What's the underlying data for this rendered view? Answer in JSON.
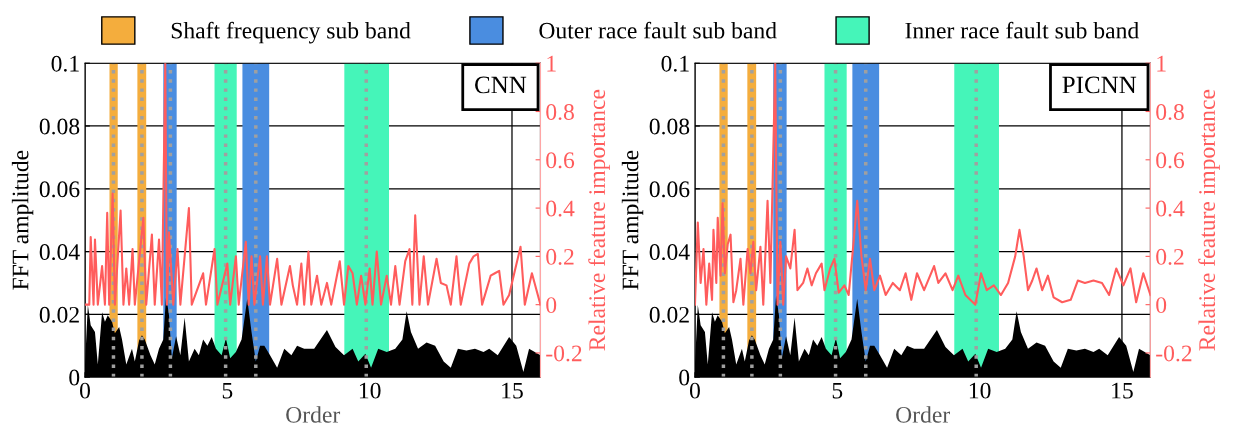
{
  "chart_data": [
    {
      "type": "line",
      "annotations": [
        "CNN"
      ],
      "xlabel": "Order",
      "ylabel": "FFT amplitude",
      "y2label": "Relative feature importance",
      "xlim": [
        0,
        16
      ],
      "xticks": [
        0,
        5,
        10,
        15
      ],
      "ylim": [
        0,
        0.1
      ],
      "yticks": [
        0,
        0.02,
        0.04,
        0.06,
        0.08,
        0.1
      ],
      "y2lim": [
        -0.3,
        1
      ],
      "y2ticks": [
        -0.2,
        0,
        0.2,
        0.4,
        0.6,
        0.8,
        1
      ],
      "grid": true,
      "legend": "top",
      "series": [
        {
          "type": "area",
          "axis": "y",
          "color": "#000000",
          "x": [
            0,
            0.1,
            0.2,
            0.35,
            0.45,
            0.6,
            0.7,
            0.8,
            0.95,
            1.05,
            1.2,
            1.3,
            1.45,
            1.65,
            1.75,
            1.9,
            2.0,
            2.1,
            2.3,
            2.45,
            2.6,
            2.75,
            2.85,
            2.95,
            3.05,
            3.2,
            3.35,
            3.5,
            3.65,
            3.85,
            4.0,
            4.15,
            4.3,
            4.45,
            4.6,
            4.8,
            4.95,
            5.1,
            5.3,
            5.5,
            5.7,
            5.85,
            6.0,
            6.15,
            6.3,
            6.5,
            6.75,
            7.0,
            7.25,
            7.45,
            7.7,
            8.05,
            8.5,
            8.8,
            9.1,
            9.4,
            9.6,
            9.85,
            10.05,
            10.3,
            10.6,
            10.9,
            11.15,
            11.3,
            11.45,
            11.7,
            12.0,
            12.3,
            12.6,
            12.85,
            13.1,
            13.4,
            13.7,
            14.0,
            14.2,
            14.5,
            14.9,
            15.15,
            15.4,
            15.6,
            15.8,
            16
          ],
          "values": [
            0.004,
            0.023,
            0.0165,
            0.0144,
            0.004,
            0.0207,
            0.0176,
            0.0197,
            0.0176,
            0.014,
            0.016,
            0.012,
            0.004,
            0.009,
            0.005,
            0.0117,
            0.0133,
            0.012,
            0.007,
            0.004,
            0.009,
            0.012,
            0.026,
            0.0197,
            0.006,
            0.013,
            0.007,
            0.019,
            0.005,
            0.009,
            0.007,
            0.012,
            0.01,
            0.0128,
            0.009,
            0.007,
            0.0124,
            0.006,
            0.008,
            0.012,
            0.025,
            0.0144,
            0.005,
            0.01,
            0.01,
            0.007,
            0.003,
            0.009,
            0.007,
            0.01,
            0.009,
            0.009,
            0.015,
            0.0096,
            0.007,
            0.009,
            0.005,
            0.0074,
            0.003,
            0.009,
            0.008,
            0.009,
            0.012,
            0.021,
            0.0144,
            0.009,
            0.011,
            0.01,
            0.005,
            0.003,
            0.009,
            0.0085,
            0.009,
            0.008,
            0.009,
            0.007,
            0.0128,
            0.01,
            0.0016,
            0.009,
            0.008,
            0.007
          ]
        },
        {
          "axis": "y2",
          "color": "#ff5c5c",
          "x": [
            0,
            0.15,
            0.2,
            0.3,
            0.35,
            0.45,
            0.6,
            0.7,
            0.78,
            0.85,
            0.97,
            1.05,
            1.25,
            1.35,
            1.45,
            1.55,
            1.67,
            1.75,
            2.05,
            2.15,
            2.35,
            2.45,
            2.6,
            2.7,
            2.82,
            2.88,
            2.95,
            3.1,
            3.25,
            3.35,
            3.65,
            3.75,
            4.15,
            4.25,
            4.55,
            4.65,
            5.0,
            5.1,
            5.3,
            5.4,
            5.65,
            5.75,
            5.85,
            5.95,
            6.15,
            6.25,
            6.39,
            6.5,
            6.75,
            6.9,
            7.2,
            7.3,
            7.45,
            7.6,
            7.7,
            7.85,
            7.95,
            8.15,
            8.3,
            8.5,
            8.65,
            8.95,
            9.1,
            9.25,
            9.4,
            9.55,
            9.7,
            9.85,
            10.0,
            10.1,
            10.25,
            10.4,
            10.6,
            10.75,
            10.9,
            11.05,
            11.25,
            11.4,
            11.5,
            11.6,
            11.75,
            11.9,
            12.05,
            12.35,
            12.5,
            12.7,
            12.85,
            13.05,
            13.2,
            13.5,
            13.65,
            13.8,
            13.95,
            14.25,
            14.4,
            14.55,
            14.7,
            14.9,
            15.1,
            15.3,
            15.45,
            15.7,
            16
          ],
          "values": [
            0,
            0,
            0.28,
            0,
            0.27,
            0,
            0.16,
            0,
            0.38,
            0,
            0.46,
            0,
            0.39,
            0,
            0.15,
            0,
            0.23,
            0,
            0.36,
            0,
            0.29,
            0,
            0.27,
            0,
            1.0,
            0,
            0.3,
            0,
            0.23,
            0,
            0.4,
            0,
            0.13,
            0,
            0.23,
            0,
            0.17,
            0,
            0.2,
            0,
            0.26,
            0,
            0.2,
            0,
            0.2,
            0,
            0.2,
            0,
            0.19,
            0,
            0.16,
            0.08,
            0,
            0.17,
            0,
            0.22,
            0,
            0.12,
            0,
            0.09,
            0,
            0.18,
            0,
            0.16,
            0.13,
            0,
            0.12,
            0,
            0.15,
            0,
            0.22,
            0,
            0.12,
            0,
            0.16,
            0,
            0.18,
            0.23,
            0,
            0.37,
            0,
            0.2,
            0,
            0.19,
            0.09,
            0.08,
            0,
            0.2,
            0,
            0.17,
            0.2,
            0.21,
            0,
            0.12,
            0.13,
            0.14,
            0,
            0.04,
            0.14,
            0.24,
            0,
            0.13,
            0
          ]
        }
      ],
      "bands": [
        {
          "axis": "x",
          "from": 0.86,
          "to": 1.15,
          "label": "Shaft frequency sub band",
          "color": "#f4ad3d"
        },
        {
          "axis": "x",
          "from": 1.84,
          "to": 2.15,
          "color": "#f4ad3d"
        },
        {
          "axis": "x",
          "from": 2.75,
          "to": 3.22,
          "label": "Outer race fault sub band",
          "color": "#4a8de0"
        },
        {
          "axis": "x",
          "from": 4.55,
          "to": 5.33,
          "label": "Inner race fault sub band",
          "color": "#45f5b9"
        },
        {
          "axis": "x",
          "from": 5.53,
          "to": 6.47,
          "color": "#4a8de0"
        },
        {
          "axis": "x",
          "from": 9.11,
          "to": 10.68,
          "color": "#45f5b9"
        }
      ],
      "ref_lines": [
        {
          "axis": "x",
          "value": 1,
          "color": "#a0a0a0",
          "line_style": "dotted"
        },
        {
          "axis": "x",
          "value": 2,
          "color": "#a0a0a0",
          "line_style": "dotted"
        },
        {
          "axis": "x",
          "value": 3,
          "color": "#a0a0a0",
          "line_style": "dotted"
        },
        {
          "axis": "x",
          "value": 4.94,
          "color": "#a0a0a0",
          "line_style": "dotted"
        },
        {
          "axis": "x",
          "value": 6,
          "color": "#a0a0a0",
          "line_style": "dotted"
        },
        {
          "axis": "x",
          "value": 9.88,
          "color": "#a0a0a0",
          "line_style": "dotted"
        }
      ]
    },
    {
      "type": "line",
      "annotations": [
        "PICNN"
      ],
      "xlabel": "Order",
      "ylabel": "FFT amplitude",
      "y2label": "Relative feature importance",
      "xlim": [
        0,
        16
      ],
      "xticks": [
        0,
        5,
        10,
        15
      ],
      "ylim": [
        0,
        0.1
      ],
      "yticks": [
        0,
        0.02,
        0.04,
        0.06,
        0.08,
        0.1
      ],
      "y2lim": [
        -0.3,
        1
      ],
      "y2ticks": [
        -0.2,
        0,
        0.2,
        0.4,
        0.6,
        0.8,
        1
      ],
      "grid": true,
      "series": [
        {
          "type": "area",
          "axis": "y",
          "color": "#000000",
          "x": [
            0,
            0.1,
            0.2,
            0.35,
            0.45,
            0.6,
            0.7,
            0.8,
            0.95,
            1.05,
            1.2,
            1.3,
            1.45,
            1.65,
            1.75,
            1.9,
            2.0,
            2.1,
            2.3,
            2.45,
            2.6,
            2.75,
            2.85,
            2.95,
            3.05,
            3.2,
            3.35,
            3.5,
            3.65,
            3.85,
            4.0,
            4.15,
            4.3,
            4.45,
            4.6,
            4.8,
            4.95,
            5.1,
            5.3,
            5.5,
            5.7,
            5.85,
            6.0,
            6.15,
            6.3,
            6.5,
            6.75,
            7.0,
            7.25,
            7.45,
            7.7,
            8.05,
            8.5,
            8.8,
            9.1,
            9.4,
            9.6,
            9.85,
            10.05,
            10.3,
            10.6,
            10.9,
            11.15,
            11.3,
            11.45,
            11.7,
            12.0,
            12.3,
            12.6,
            12.85,
            13.1,
            13.4,
            13.7,
            14.0,
            14.2,
            14.5,
            14.9,
            15.15,
            15.4,
            15.6,
            15.8,
            16
          ],
          "values": [
            0.004,
            0.023,
            0.0165,
            0.0144,
            0.004,
            0.0207,
            0.0176,
            0.0197,
            0.0176,
            0.014,
            0.016,
            0.012,
            0.004,
            0.009,
            0.005,
            0.0117,
            0.0133,
            0.012,
            0.007,
            0.004,
            0.009,
            0.012,
            0.026,
            0.0197,
            0.006,
            0.013,
            0.007,
            0.019,
            0.005,
            0.009,
            0.007,
            0.012,
            0.01,
            0.0128,
            0.009,
            0.007,
            0.0124,
            0.006,
            0.008,
            0.012,
            0.025,
            0.0144,
            0.005,
            0.01,
            0.01,
            0.007,
            0.003,
            0.009,
            0.007,
            0.01,
            0.009,
            0.009,
            0.015,
            0.0096,
            0.007,
            0.009,
            0.005,
            0.0074,
            0.003,
            0.009,
            0.008,
            0.009,
            0.012,
            0.021,
            0.0144,
            0.009,
            0.011,
            0.01,
            0.005,
            0.003,
            0.009,
            0.0085,
            0.009,
            0.008,
            0.009,
            0.007,
            0.0128,
            0.01,
            0.0016,
            0.009,
            0.008,
            0.007
          ]
        },
        {
          "axis": "y2",
          "color": "#ff5c5c",
          "x": [
            0,
            0.1,
            0.2,
            0.3,
            0.4,
            0.5,
            0.6,
            0.65,
            0.75,
            0.8,
            0.9,
            0.97,
            1.05,
            1.15,
            1.25,
            1.35,
            1.45,
            1.6,
            1.7,
            1.85,
            1.95,
            2.05,
            2.15,
            2.3,
            2.4,
            2.55,
            2.65,
            2.82,
            2.9,
            3.0,
            3.1,
            3.2,
            3.35,
            3.5,
            3.6,
            3.8,
            3.95,
            4.1,
            4.25,
            4.45,
            4.55,
            4.75,
            4.9,
            5.05,
            5.25,
            5.4,
            5.55,
            5.7,
            5.85,
            6.0,
            6.15,
            6.3,
            6.5,
            6.7,
            6.95,
            7.2,
            7.4,
            7.6,
            7.8,
            8.05,
            8.4,
            8.55,
            8.8,
            9.05,
            9.25,
            9.5,
            9.85,
            10.05,
            10.25,
            10.5,
            10.75,
            11.0,
            11.25,
            11.4,
            11.55,
            11.7,
            11.85,
            12.0,
            12.2,
            12.4,
            12.6,
            12.9,
            13.2,
            13.45,
            13.7,
            14.0,
            14.3,
            14.55,
            14.8,
            15.05,
            15.3,
            15.5,
            15.75,
            16
          ],
          "values": [
            0,
            0.34,
            0.09,
            0.23,
            0,
            0.17,
            0.02,
            0.31,
            0.09,
            0.36,
            0.12,
            0.42,
            0.13,
            0.25,
            0.29,
            0.01,
            0.06,
            0.19,
            0,
            0.23,
            0.13,
            0.26,
            0.06,
            0.24,
            0,
            0.43,
            0.09,
            1.0,
            0,
            0.26,
            0,
            0.2,
            0.15,
            0.31,
            0.06,
            0.09,
            0.15,
            0.08,
            0.13,
            0.17,
            0.06,
            0.15,
            0.19,
            0.05,
            0.08,
            0.04,
            0.23,
            0.43,
            0.2,
            0.06,
            0.19,
            0.06,
            0.12,
            0.04,
            0.09,
            0.06,
            0.13,
            0.02,
            0.13,
            0.06,
            0.16,
            0.09,
            0.13,
            0.06,
            0.12,
            0.04,
            0,
            0.13,
            0.06,
            0.08,
            0.04,
            0.09,
            0.2,
            0.31,
            0.2,
            0.06,
            0.1,
            0.15,
            0.06,
            0.12,
            0.03,
            0.01,
            0.02,
            0.1,
            0.09,
            0.1,
            0.09,
            0.04,
            0.15,
            0.08,
            0.15,
            0.01,
            0.13,
            0.04
          ]
        }
      ],
      "bands": [
        {
          "axis": "x",
          "from": 0.86,
          "to": 1.15,
          "color": "#f4ad3d"
        },
        {
          "axis": "x",
          "from": 1.84,
          "to": 2.15,
          "color": "#f4ad3d"
        },
        {
          "axis": "x",
          "from": 2.75,
          "to": 3.22,
          "color": "#4a8de0"
        },
        {
          "axis": "x",
          "from": 4.55,
          "to": 5.33,
          "color": "#45f5b9"
        },
        {
          "axis": "x",
          "from": 5.53,
          "to": 6.47,
          "color": "#4a8de0"
        },
        {
          "axis": "x",
          "from": 9.11,
          "to": 10.68,
          "color": "#45f5b9"
        }
      ],
      "ref_lines": [
        {
          "axis": "x",
          "value": 1,
          "color": "#a0a0a0",
          "line_style": "dotted"
        },
        {
          "axis": "x",
          "value": 2,
          "color": "#a0a0a0",
          "line_style": "dotted"
        },
        {
          "axis": "x",
          "value": 3,
          "color": "#a0a0a0",
          "line_style": "dotted"
        },
        {
          "axis": "x",
          "value": 4.94,
          "color": "#a0a0a0",
          "line_style": "dotted"
        },
        {
          "axis": "x",
          "value": 6,
          "color": "#a0a0a0",
          "line_style": "dotted"
        },
        {
          "axis": "x",
          "value": 9.88,
          "color": "#a0a0a0",
          "line_style": "dotted"
        }
      ]
    }
  ]
}
